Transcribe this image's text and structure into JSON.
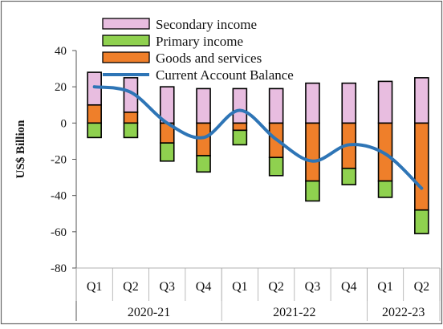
{
  "chart_data": {
    "type": "bar",
    "subtype": "stacked-bar-with-line",
    "title": "",
    "ylabel": "US$ Billion",
    "xlabel": "",
    "ylim": [
      -80,
      40
    ],
    "yticks": [
      40,
      20,
      0,
      -20,
      -40,
      -60,
      -80
    ],
    "grid": false,
    "legend_position": "top-center",
    "categories": [
      "Q1",
      "Q2",
      "Q3",
      "Q4",
      "Q1",
      "Q2",
      "Q3",
      "Q4",
      "Q1",
      "Q2"
    ],
    "groups": [
      {
        "label": "2020-21",
        "span": 4
      },
      {
        "label": "2021-22",
        "span": 4
      },
      {
        "label": "2022-23",
        "span": 2
      }
    ],
    "series": [
      {
        "name": "Secondary income",
        "kind": "bar",
        "color": "#e8bde0",
        "values": [
          18,
          19,
          20,
          19,
          19,
          19,
          22,
          22,
          23,
          25
        ]
      },
      {
        "name": "Primary income",
        "kind": "bar",
        "color": "#8fd14f",
        "values": [
          -8,
          -8,
          -10,
          -9,
          -8,
          -10,
          -11,
          -9,
          -9,
          -13
        ]
      },
      {
        "name": "Goods and services",
        "kind": "bar",
        "color": "#ef7f2a",
        "values": [
          10,
          6,
          -11,
          -18,
          -4,
          -19,
          -32,
          -25,
          -32,
          -48
        ]
      },
      {
        "name": "Current Account Balance",
        "kind": "line",
        "color": "#2e75b6",
        "values": [
          20,
          17,
          0,
          -8,
          7,
          -9,
          -21,
          -12,
          -17,
          -36
        ]
      }
    ]
  }
}
